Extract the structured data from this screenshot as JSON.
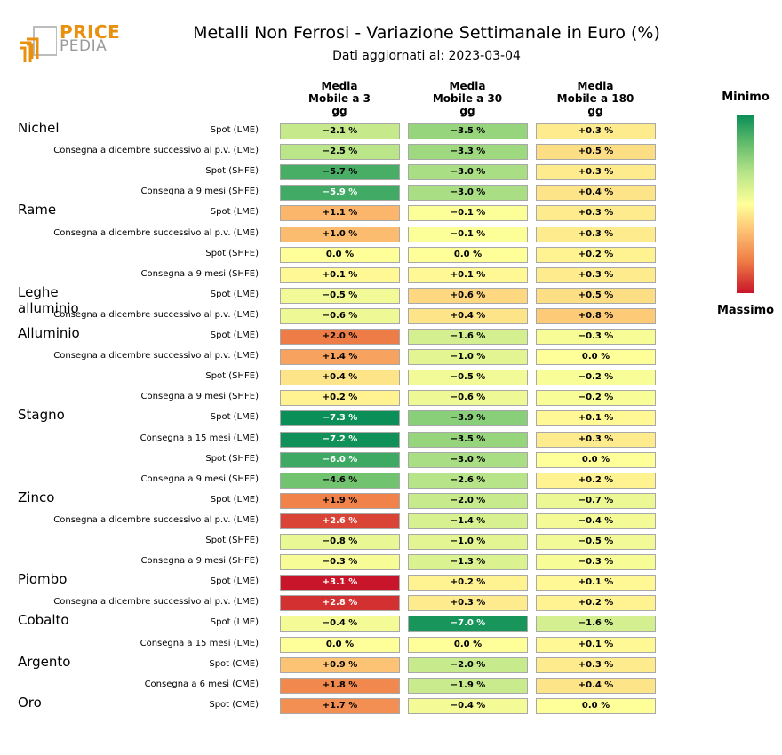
{
  "logo": {
    "price": "PRICE",
    "pedia": "PEDIA"
  },
  "title": "Metalli Non Ferrosi - Variazione Settimanale in Euro (%)",
  "subtitle": "Dati aggiornati al: 2023-03-04",
  "legend": {
    "top_label": "Minimo",
    "bottom_label": "Massimo"
  },
  "colors": {
    "min": "#0b8f58",
    "mid": "#ffff99",
    "max": "#c91529",
    "logo_orange": "#e8900f",
    "logo_gray": "#9a9a9a"
  },
  "chart_data": {
    "type": "heatmap",
    "title": "Metalli Non Ferrosi - Variazione Settimanale in Euro (%)",
    "columns": [
      "Media\nMobile a 3\ngg",
      "Media\nMobile a 30\ngg",
      "Media\nMobile a 180\ngg"
    ],
    "color_scale": {
      "low_label": "Minimo",
      "high_label": "Massimo",
      "range": [
        -7.3,
        3.1
      ]
    },
    "rows": [
      {
        "metal": "Nichel",
        "contract": "Spot (LME)",
        "values": [
          -2.1,
          -3.5,
          0.3
        ],
        "labels": [
          "−2.1 %",
          "−3.5 %",
          "+0.3 %"
        ]
      },
      {
        "metal": "",
        "contract": "Consegna a dicembre successivo al p.v. (LME)",
        "values": [
          -2.5,
          -3.3,
          0.5
        ],
        "labels": [
          "−2.5 %",
          "−3.3 %",
          "+0.5 %"
        ]
      },
      {
        "metal": "",
        "contract": "Spot (SHFE)",
        "values": [
          -5.7,
          -3.0,
          0.3
        ],
        "labels": [
          "−5.7 %",
          "−3.0 %",
          "+0.3 %"
        ]
      },
      {
        "metal": "",
        "contract": "Consegna a 9 mesi (SHFE)",
        "values": [
          -5.9,
          -3.0,
          0.4
        ],
        "labels": [
          "−5.9 %",
          "−3.0 %",
          "+0.4 %"
        ]
      },
      {
        "metal": "Rame",
        "contract": "Spot (LME)",
        "values": [
          1.1,
          -0.1,
          0.3
        ],
        "labels": [
          "+1.1 %",
          "−0.1 %",
          "+0.3 %"
        ]
      },
      {
        "metal": "",
        "contract": "Consegna a dicembre successivo al p.v. (LME)",
        "values": [
          1.0,
          -0.1,
          0.3
        ],
        "labels": [
          "+1.0 %",
          "−0.1 %",
          "+0.3 %"
        ]
      },
      {
        "metal": "",
        "contract": "Spot (SHFE)",
        "values": [
          0.0,
          0.0,
          0.2
        ],
        "labels": [
          "0.0 %",
          "0.0 %",
          "+0.2 %"
        ]
      },
      {
        "metal": "",
        "contract": "Consegna a 9 mesi (SHFE)",
        "values": [
          0.1,
          0.1,
          0.3
        ],
        "labels": [
          "+0.1 %",
          "+0.1 %",
          "+0.3 %"
        ]
      },
      {
        "metal": "Leghe alluminio",
        "contract": "Spot (LME)",
        "values": [
          -0.5,
          0.6,
          0.5
        ],
        "labels": [
          "−0.5 %",
          "+0.6 %",
          "+0.5 %"
        ]
      },
      {
        "metal": "",
        "contract": "Consegna a dicembre successivo al p.v. (LME)",
        "values": [
          -0.6,
          0.4,
          0.8
        ],
        "labels": [
          "−0.6 %",
          "+0.4 %",
          "+0.8 %"
        ]
      },
      {
        "metal": "Alluminio",
        "contract": "Spot (LME)",
        "values": [
          2.0,
          -1.6,
          -0.3
        ],
        "labels": [
          "+2.0 %",
          "−1.6 %",
          "−0.3 %"
        ]
      },
      {
        "metal": "",
        "contract": "Consegna a dicembre successivo al p.v. (LME)",
        "values": [
          1.4,
          -1.0,
          0.0
        ],
        "labels": [
          "+1.4 %",
          "−1.0 %",
          "0.0 %"
        ]
      },
      {
        "metal": "",
        "contract": "Spot (SHFE)",
        "values": [
          0.4,
          -0.5,
          -0.2
        ],
        "labels": [
          "+0.4 %",
          "−0.5 %",
          "−0.2 %"
        ]
      },
      {
        "metal": "",
        "contract": "Consegna a 9 mesi (SHFE)",
        "values": [
          0.2,
          -0.6,
          -0.2
        ],
        "labels": [
          "+0.2 %",
          "−0.6 %",
          "−0.2 %"
        ]
      },
      {
        "metal": "Stagno",
        "contract": "Spot (LME)",
        "values": [
          -7.3,
          -3.9,
          0.1
        ],
        "labels": [
          "−7.3 %",
          "−3.9 %",
          "+0.1 %"
        ]
      },
      {
        "metal": "",
        "contract": "Consegna a 15 mesi (LME)",
        "values": [
          -7.2,
          -3.5,
          0.3
        ],
        "labels": [
          "−7.2 %",
          "−3.5 %",
          "+0.3 %"
        ]
      },
      {
        "metal": "",
        "contract": "Spot (SHFE)",
        "values": [
          -6.0,
          -3.0,
          0.0
        ],
        "labels": [
          "−6.0 %",
          "−3.0 %",
          "0.0 %"
        ]
      },
      {
        "metal": "",
        "contract": "Consegna a 9 mesi (SHFE)",
        "values": [
          -4.6,
          -2.6,
          0.2
        ],
        "labels": [
          "−4.6 %",
          "−2.6 %",
          "+0.2 %"
        ]
      },
      {
        "metal": "Zinco",
        "contract": "Spot (LME)",
        "values": [
          1.9,
          -2.0,
          -0.7
        ],
        "labels": [
          "+1.9 %",
          "−2.0 %",
          "−0.7 %"
        ]
      },
      {
        "metal": "",
        "contract": "Consegna a dicembre successivo al p.v. (LME)",
        "values": [
          2.6,
          -1.4,
          -0.4
        ],
        "labels": [
          "+2.6 %",
          "−1.4 %",
          "−0.4 %"
        ]
      },
      {
        "metal": "",
        "contract": "Spot (SHFE)",
        "values": [
          -0.8,
          -1.0,
          -0.5
        ],
        "labels": [
          "−0.8 %",
          "−1.0 %",
          "−0.5 %"
        ]
      },
      {
        "metal": "",
        "contract": "Consegna a 9 mesi (SHFE)",
        "values": [
          -0.3,
          -1.3,
          -0.3
        ],
        "labels": [
          "−0.3 %",
          "−1.3 %",
          "−0.3 %"
        ]
      },
      {
        "metal": "Piombo",
        "contract": "Spot (LME)",
        "values": [
          3.1,
          0.2,
          0.1
        ],
        "labels": [
          "+3.1 %",
          "+0.2 %",
          "+0.1 %"
        ]
      },
      {
        "metal": "",
        "contract": "Consegna a dicembre successivo al p.v. (LME)",
        "values": [
          2.8,
          0.3,
          0.2
        ],
        "labels": [
          "+2.8 %",
          "+0.3 %",
          "+0.2 %"
        ]
      },
      {
        "metal": "Cobalto",
        "contract": "Spot (LME)",
        "values": [
          -0.4,
          -7.0,
          -1.6
        ],
        "labels": [
          "−0.4 %",
          "−7.0 %",
          "−1.6 %"
        ]
      },
      {
        "metal": "",
        "contract": "Consegna a 15 mesi (LME)",
        "values": [
          0.0,
          0.0,
          0.1
        ],
        "labels": [
          "0.0 %",
          "0.0 %",
          "+0.1 %"
        ]
      },
      {
        "metal": "Argento",
        "contract": "Spot (CME)",
        "values": [
          0.9,
          -2.0,
          0.3
        ],
        "labels": [
          "+0.9 %",
          "−2.0 %",
          "+0.3 %"
        ]
      },
      {
        "metal": "",
        "contract": "Consegna a 6 mesi (CME)",
        "values": [
          1.8,
          -1.9,
          0.4
        ],
        "labels": [
          "+1.8 %",
          "−1.9 %",
          "+0.4 %"
        ]
      },
      {
        "metal": "Oro",
        "contract": "Spot (CME)",
        "values": [
          1.7,
          -0.4,
          0.0
        ],
        "labels": [
          "+1.7 %",
          "−0.4 %",
          "0.0 %"
        ]
      }
    ]
  }
}
